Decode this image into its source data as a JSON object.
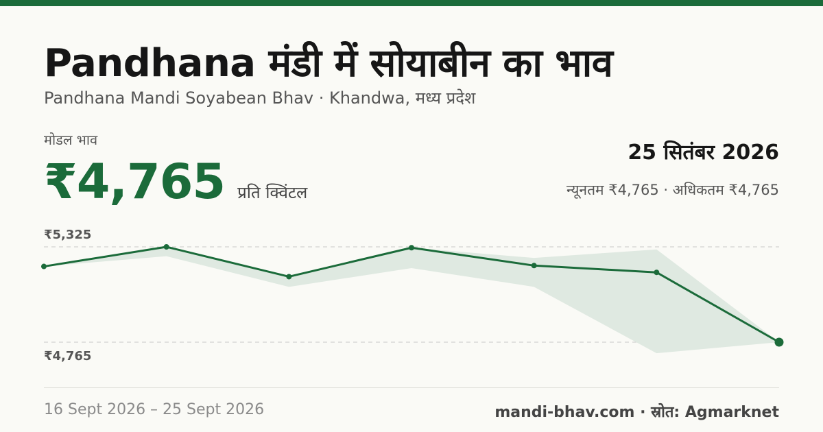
{
  "header": {
    "title": "Pandhana मंडी में सोयाबीन का भाव",
    "subtitle": "Pandhana Mandi Soyabean Bhav · Khandwa, मध्य प्रदेश"
  },
  "price": {
    "label": "मोडल भाव",
    "value": "₹4,765",
    "unit": "प्रति क्विंटल"
  },
  "date": "25 सितंबर 2026",
  "range_text": "न्यूनतम ₹4,765 · अधिकतम ₹4,765",
  "footer": {
    "date_range": "16 Sept 2026 – 25 Sept 2026",
    "source": "mandi-bhav.com · स्रोत: Agmarknet"
  },
  "colors": {
    "accent": "#1b6b3a",
    "band": "#dfe9e1",
    "grid": "#c8c8c8"
  },
  "chart_data": {
    "type": "line",
    "x": [
      "16 Sept 2026",
      "",
      "",
      "",
      "",
      "",
      "25 Sept 2026"
    ],
    "series": [
      {
        "values": [
          5210,
          5325,
          5150,
          5320,
          5215,
          5175,
          4765
        ]
      }
    ],
    "band": {
      "min": [
        5210,
        5270,
        5090,
        5200,
        5090,
        4700,
        4765
      ],
      "max": [
        5210,
        5325,
        5150,
        5320,
        5260,
        5310,
        4765
      ]
    },
    "ytick_labels": [
      "₹5,325",
      "₹4,765"
    ],
    "yticks": [
      5325,
      4765
    ],
    "ylim": [
      4700,
      5325
    ],
    "grid": true
  }
}
